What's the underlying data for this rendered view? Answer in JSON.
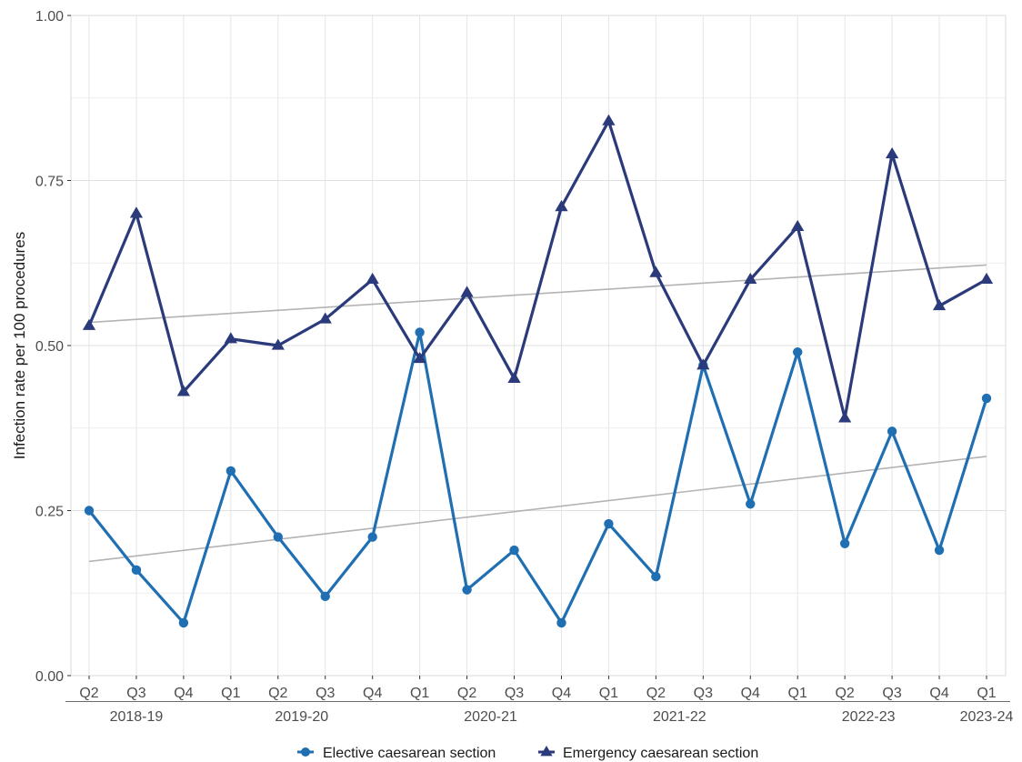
{
  "chart_data": {
    "type": "line",
    "ylabel": "Infection rate per 100 procedures",
    "xlabel": "",
    "ylim": [
      0,
      1
    ],
    "y_ticks": [
      "0.00",
      "0.25",
      "0.50",
      "0.75",
      "1.00"
    ],
    "y_tick_values": [
      0,
      0.25,
      0.5,
      0.75,
      1.0
    ],
    "grid": true,
    "legend_position": "bottom",
    "quarters": [
      "Q2",
      "Q3",
      "Q4",
      "Q1",
      "Q2",
      "Q3",
      "Q4",
      "Q1",
      "Q2",
      "Q3",
      "Q4",
      "Q1",
      "Q2",
      "Q3",
      "Q4",
      "Q1",
      "Q2",
      "Q3",
      "Q4",
      "Q1"
    ],
    "year_groups": [
      {
        "label": "2018-19",
        "start": 0,
        "end": 2
      },
      {
        "label": "2019-20",
        "start": 3,
        "end": 6
      },
      {
        "label": "2020-21",
        "start": 7,
        "end": 10
      },
      {
        "label": "2021-22",
        "start": 11,
        "end": 14
      },
      {
        "label": "2022-23",
        "start": 15,
        "end": 18
      },
      {
        "label": "2023-24",
        "start": 19,
        "end": 19
      }
    ],
    "series": [
      {
        "name": "Elective caesarean section",
        "color": "#1f6fb2",
        "marker": "circle",
        "values": [
          0.25,
          0.16,
          0.08,
          0.31,
          0.21,
          0.12,
          0.21,
          0.52,
          0.13,
          0.19,
          0.08,
          0.23,
          0.15,
          0.47,
          0.26,
          0.49,
          0.2,
          0.37,
          0.19,
          0.42
        ],
        "trend": [
          0.173,
          0.332
        ]
      },
      {
        "name": "Emergency caesarean section",
        "color": "#2b3a7a",
        "marker": "triangle",
        "values": [
          0.53,
          0.7,
          0.43,
          0.51,
          0.5,
          0.54,
          0.6,
          0.48,
          0.58,
          0.45,
          0.71,
          0.84,
          0.61,
          0.47,
          0.6,
          0.68,
          0.39,
          0.79,
          0.56,
          0.6
        ],
        "trend": [
          0.535,
          0.622
        ]
      }
    ],
    "trend_color": "#b3b3b3"
  }
}
